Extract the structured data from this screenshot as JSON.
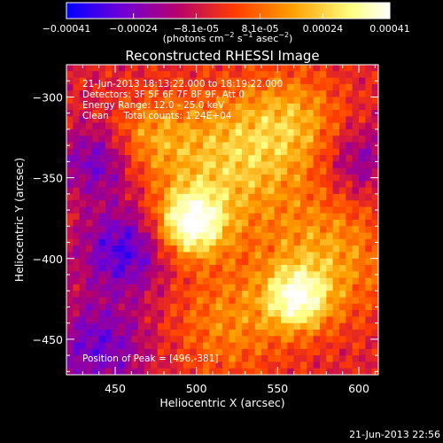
{
  "chart_data": {
    "type": "heatmap",
    "title": "Reconstructed RHESSI Image",
    "xlabel": "Heliocentric X (arcsec)",
    "ylabel": "Heliocentric Y (arcsec)",
    "xlim": [
      420,
      612
    ],
    "ylim": [
      -472,
      -280
    ],
    "x_ticks": [
      450,
      500,
      550,
      600
    ],
    "y_ticks": [
      -300,
      -350,
      -400,
      -450
    ],
    "colorbar": {
      "range": [
        -0.00041,
        0.00041
      ],
      "ticks": [
        {
          "value": -0.00041,
          "label": "-0.00041"
        },
        {
          "value": -0.00024,
          "label": "-0.00024"
        },
        {
          "value": -8.1e-05,
          "label": "-8.1e-05"
        },
        {
          "value": 8.1e-05,
          "label": "8.1e-05"
        },
        {
          "value": 0.00024,
          "label": "0.00024"
        },
        {
          "value": 0.00041,
          "label": "0.00041"
        }
      ],
      "unit_label": "(photons cm-2 s-1 asec-2)",
      "unit_parts": {
        "pre": "(photons cm",
        "e1": "−2",
        "mid": " s",
        "e2": "−1",
        "mid2": " asec",
        "e3": "−2",
        "post": ")"
      },
      "colormap_stops": [
        "#0000ff",
        "#6e00d8",
        "#b4006e",
        "#ff3c00",
        "#ffa000",
        "#ffff80",
        "#ffffff"
      ]
    },
    "annotations": [
      "21-Jun-2013 18:13:22.000 to 18:19:22.000",
      "Detectors: 3F 5F 6F 7F 8F 9F, Att 0",
      "Energy Range: 12.0 - 25.0 keV",
      "Clean     Total counts: 1.24E+04"
    ],
    "peak_label": "Position of Peak = [496,-381]",
    "peak": [
      496,
      -381
    ],
    "sources": [
      {
        "x": 497,
        "y": -378,
        "amplitude": 1.0,
        "sigma": 14
      },
      {
        "x": 562,
        "y": -425,
        "amplitude": 0.78,
        "sigma": 13
      },
      {
        "x": 520,
        "y": -340,
        "amplitude": 0.55,
        "sigma": 30
      },
      {
        "x": 580,
        "y": -400,
        "amplitude": 0.45,
        "sigma": 28
      },
      {
        "x": 560,
        "y": -315,
        "amplitude": 0.4,
        "sigma": 22
      },
      {
        "x": 470,
        "y": -325,
        "amplitude": 0.35,
        "sigma": 18
      },
      {
        "x": 520,
        "y": -440,
        "amplitude": 0.35,
        "sigma": 25
      },
      {
        "x": 455,
        "y": -395,
        "amplitude": -0.55,
        "sigma": 18
      },
      {
        "x": 440,
        "y": -340,
        "amplitude": -0.45,
        "sigma": 16
      },
      {
        "x": 440,
        "y": -455,
        "amplitude": -0.45,
        "sigma": 20
      },
      {
        "x": 600,
        "y": -340,
        "amplitude": -0.35,
        "sigma": 15
      }
    ]
  },
  "footer_timestamp": "21-Jun-2013 22:56"
}
